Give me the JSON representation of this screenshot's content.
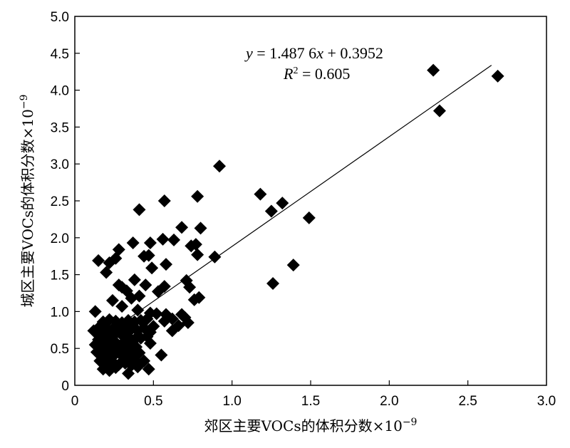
{
  "chart_data": {
    "type": "scatter",
    "xlabel": "郊区主要VOCs的体积分数×10",
    "xlabel_exp": "−9",
    "ylabel": "城区主要VOCs的体积分数×10",
    "ylabel_exp": "−9",
    "xlim": [
      0,
      3.0
    ],
    "ylim": [
      0,
      5.0
    ],
    "xticks": [
      "0",
      "0.5",
      "1.0",
      "1.5",
      "2.0",
      "2.5",
      "3.0"
    ],
    "yticks": [
      "0",
      "0.5",
      "1.0",
      "1.5",
      "2.0",
      "2.5",
      "3.0",
      "3.5",
      "4.0",
      "4.5",
      "5.0"
    ],
    "grid": false,
    "marker": "diamond",
    "marker_color": "#000000",
    "fit": {
      "slope": 1.4876,
      "intercept": 0.3952,
      "x_range": [
        0.3,
        2.65
      ],
      "equation_y": "y",
      "equation_rhs": " = 1.487 6",
      "equation_x": "x",
      "equation_tail": " + 0.3952",
      "r2_R": "R",
      "r2_exp": "2",
      "r2_rhs": " = 0.605"
    },
    "points": [
      [
        2.28,
        4.27
      ],
      [
        2.69,
        4.19
      ],
      [
        2.32,
        3.72
      ],
      [
        0.92,
        2.97
      ],
      [
        1.18,
        2.59
      ],
      [
        0.78,
        2.56
      ],
      [
        0.57,
        2.5
      ],
      [
        0.41,
        2.38
      ],
      [
        1.32,
        2.47
      ],
      [
        1.25,
        2.36
      ],
      [
        1.49,
        2.27
      ],
      [
        0.68,
        2.14
      ],
      [
        0.8,
        2.13
      ],
      [
        0.56,
        1.98
      ],
      [
        0.63,
        1.97
      ],
      [
        0.48,
        1.93
      ],
      [
        0.37,
        1.93
      ],
      [
        0.74,
        1.89
      ],
      [
        0.77,
        1.91
      ],
      [
        0.28,
        1.84
      ],
      [
        0.47,
        1.76
      ],
      [
        0.44,
        1.75
      ],
      [
        0.78,
        1.77
      ],
      [
        0.89,
        1.74
      ],
      [
        0.15,
        1.69
      ],
      [
        0.22,
        1.66
      ],
      [
        0.26,
        1.72
      ],
      [
        0.58,
        1.64
      ],
      [
        1.39,
        1.63
      ],
      [
        0.49,
        1.59
      ],
      [
        0.2,
        1.53
      ],
      [
        0.71,
        1.42
      ],
      [
        0.38,
        1.43
      ],
      [
        0.28,
        1.36
      ],
      [
        0.3,
        1.33
      ],
      [
        0.45,
        1.36
      ],
      [
        0.57,
        1.34
      ],
      [
        0.53,
        1.27
      ],
      [
        0.73,
        1.33
      ],
      [
        1.26,
        1.38
      ],
      [
        0.33,
        1.28
      ],
      [
        0.41,
        1.21
      ],
      [
        0.24,
        1.15
      ],
      [
        0.36,
        1.18
      ],
      [
        0.76,
        1.16
      ],
      [
        0.79,
        1.19
      ],
      [
        0.3,
        1.07
      ],
      [
        0.4,
        1.02
      ],
      [
        0.13,
        1.0
      ],
      [
        0.48,
        0.98
      ],
      [
        0.52,
        0.97
      ],
      [
        0.58,
        0.96
      ],
      [
        0.62,
        0.9
      ],
      [
        0.68,
        0.96
      ],
      [
        0.7,
        0.92
      ],
      [
        0.66,
        0.81
      ],
      [
        0.72,
        0.85
      ],
      [
        0.62,
        0.74
      ],
      [
        0.57,
        0.87
      ],
      [
        0.46,
        0.9
      ],
      [
        0.42,
        0.88
      ],
      [
        0.38,
        0.86
      ],
      [
        0.34,
        0.88
      ],
      [
        0.3,
        0.85
      ],
      [
        0.26,
        0.87
      ],
      [
        0.22,
        0.89
      ],
      [
        0.18,
        0.86
      ],
      [
        0.16,
        0.8
      ],
      [
        0.2,
        0.78
      ],
      [
        0.24,
        0.76
      ],
      [
        0.28,
        0.8
      ],
      [
        0.32,
        0.78
      ],
      [
        0.36,
        0.76
      ],
      [
        0.4,
        0.74
      ],
      [
        0.44,
        0.78
      ],
      [
        0.48,
        0.72
      ],
      [
        0.5,
        0.8
      ],
      [
        0.12,
        0.74
      ],
      [
        0.14,
        0.7
      ],
      [
        0.18,
        0.68
      ],
      [
        0.22,
        0.66
      ],
      [
        0.26,
        0.7
      ],
      [
        0.3,
        0.68
      ],
      [
        0.34,
        0.66
      ],
      [
        0.38,
        0.62
      ],
      [
        0.42,
        0.64
      ],
      [
        0.46,
        0.66
      ],
      [
        0.15,
        0.62
      ],
      [
        0.19,
        0.58
      ],
      [
        0.23,
        0.6
      ],
      [
        0.27,
        0.56
      ],
      [
        0.31,
        0.58
      ],
      [
        0.35,
        0.55
      ],
      [
        0.39,
        0.52
      ],
      [
        0.48,
        0.57
      ],
      [
        0.13,
        0.55
      ],
      [
        0.17,
        0.52
      ],
      [
        0.21,
        0.5
      ],
      [
        0.25,
        0.48
      ],
      [
        0.29,
        0.5
      ],
      [
        0.33,
        0.46
      ],
      [
        0.37,
        0.48
      ],
      [
        0.41,
        0.44
      ],
      [
        0.14,
        0.45
      ],
      [
        0.18,
        0.42
      ],
      [
        0.22,
        0.4
      ],
      [
        0.26,
        0.43
      ],
      [
        0.3,
        0.4
      ],
      [
        0.34,
        0.38
      ],
      [
        0.38,
        0.35
      ],
      [
        0.44,
        0.33
      ],
      [
        0.55,
        0.41
      ],
      [
        0.16,
        0.33
      ],
      [
        0.2,
        0.3
      ],
      [
        0.24,
        0.32
      ],
      [
        0.28,
        0.28
      ],
      [
        0.32,
        0.3
      ],
      [
        0.36,
        0.27
      ],
      [
        0.4,
        0.25
      ],
      [
        0.18,
        0.22
      ],
      [
        0.22,
        0.2
      ],
      [
        0.34,
        0.16
      ],
      [
        0.47,
        0.22
      ],
      [
        0.26,
        0.24
      ]
    ]
  }
}
